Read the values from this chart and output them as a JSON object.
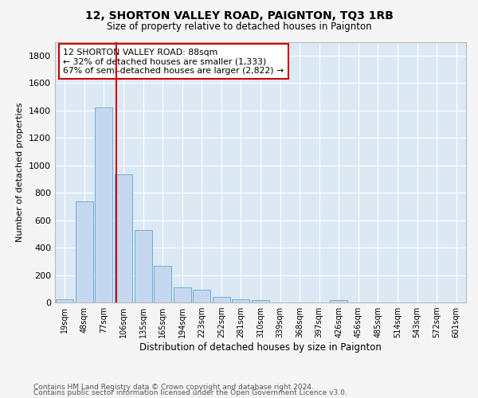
{
  "title1": "12, SHORTON VALLEY ROAD, PAIGNTON, TQ3 1RB",
  "title2": "Size of property relative to detached houses in Paignton",
  "xlabel": "Distribution of detached houses by size in Paignton",
  "ylabel": "Number of detached properties",
  "footnote1": "Contains HM Land Registry data © Crown copyright and database right 2024.",
  "footnote2": "Contains public sector information licensed under the Open Government Licence v3.0.",
  "annotation_line1": "12 SHORTON VALLEY ROAD: 88sqm",
  "annotation_line2": "← 32% of detached houses are smaller (1,333)",
  "annotation_line3": "67% of semi-detached houses are larger (2,822) →",
  "bar_labels": [
    "19sqm",
    "48sqm",
    "77sqm",
    "106sqm",
    "135sqm",
    "165sqm",
    "194sqm",
    "223sqm",
    "252sqm",
    "281sqm",
    "310sqm",
    "339sqm",
    "368sqm",
    "397sqm",
    "426sqm",
    "456sqm",
    "485sqm",
    "514sqm",
    "543sqm",
    "572sqm",
    "601sqm"
  ],
  "bar_values": [
    22,
    738,
    1421,
    935,
    530,
    268,
    110,
    95,
    43,
    22,
    15,
    0,
    0,
    0,
    18,
    0,
    0,
    0,
    0,
    0,
    0
  ],
  "bar_color": "#c5d8f0",
  "bar_edge_color": "#6baed6",
  "red_line_x": 2.62,
  "ylim": [
    0,
    1900
  ],
  "yticks": [
    0,
    200,
    400,
    600,
    800,
    1000,
    1200,
    1400,
    1600,
    1800
  ],
  "plot_bg_color": "#dce9f5",
  "fig_bg_color": "#f5f5f5",
  "grid_color": "#ffffff",
  "annotation_box_facecolor": "#ffffff",
  "annotation_box_edgecolor": "#cc0000",
  "red_line_color": "#cc0000"
}
